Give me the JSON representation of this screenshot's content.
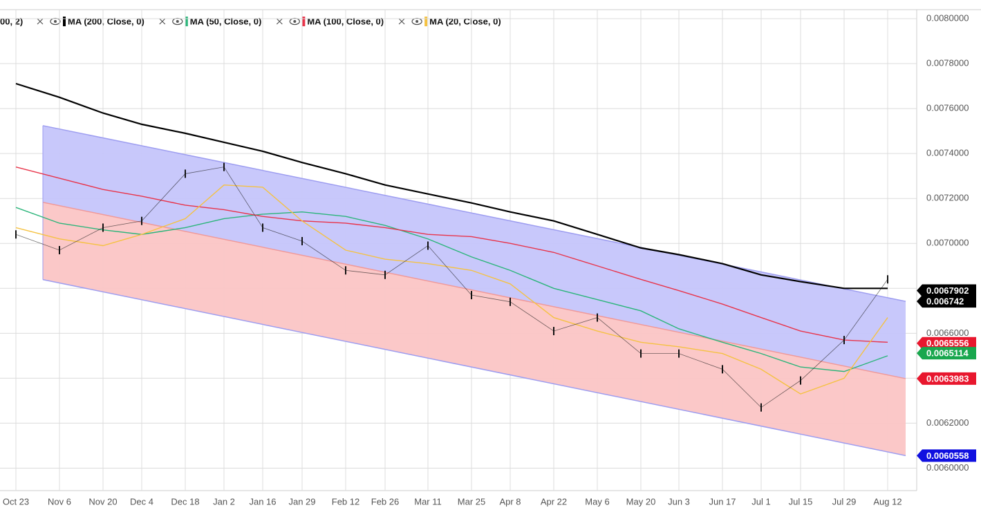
{
  "chart_data": {
    "type": "line",
    "legend_prefix": "00, 2)",
    "categories": [
      "Oct 23",
      "Nov 6",
      "Nov 20",
      "Dec 4",
      "Dec 18",
      "Jan 2",
      "Jan 16",
      "Jan 29",
      "Feb 12",
      "Feb 26",
      "Mar 11",
      "Mar 25",
      "Apr 8",
      "Apr 22",
      "May 6",
      "May 20",
      "Jun 3",
      "Jun 17",
      "Jul 1",
      "Jul 15",
      "Jul 29",
      "Aug 12"
    ],
    "ylim": [
      0.0059,
      0.00804
    ],
    "yticks": [
      {
        "value": 0.006,
        "label": "0.0060000"
      },
      {
        "value": 0.0062,
        "label": "0.0062000"
      },
      {
        "value": 0.0064,
        "label": "0.0064000"
      },
      {
        "value": 0.0066,
        "label": "0.0066000"
      },
      {
        "value": 0.0068,
        "label": "0.0068000"
      },
      {
        "value": 0.007,
        "label": "0.0070000"
      },
      {
        "value": 0.0072,
        "label": "0.0072000"
      },
      {
        "value": 0.0074,
        "label": "0.0074000"
      },
      {
        "value": 0.0076,
        "label": "0.0076000"
      },
      {
        "value": 0.0078,
        "label": "0.0078000"
      },
      {
        "value": 0.008,
        "label": "0.0080000"
      }
    ],
    "grid": true,
    "series": [
      {
        "name": "MA (200, Close, 0)",
        "color": "#000000",
        "values": [
          0.007711,
          0.00765,
          0.00758,
          0.00753,
          0.00749,
          0.00745,
          0.00741,
          0.00736,
          0.00731,
          0.00726,
          0.00722,
          0.00718,
          0.00714,
          0.0071,
          0.00704,
          0.00698,
          0.00695,
          0.00691,
          0.00686,
          0.00683,
          0.0068,
          0.0068
        ]
      },
      {
        "name": "MA (50, Close, 0)",
        "color": "#2bb57a",
        "values": [
          0.00716,
          0.00709,
          0.00706,
          0.00704,
          0.00707,
          0.00711,
          0.00713,
          0.00714,
          0.00712,
          0.00708,
          0.00702,
          0.00694,
          0.00688,
          0.0068,
          0.00675,
          0.0067,
          0.00662,
          0.00656,
          0.00651,
          0.00645,
          0.00643,
          0.0065
        ]
      },
      {
        "name": "MA (100, Close, 0)",
        "color": "#e8344a",
        "values": [
          0.00734,
          0.00729,
          0.00724,
          0.00721,
          0.00717,
          0.00715,
          0.00712,
          0.0071,
          0.00709,
          0.00707,
          0.00704,
          0.00703,
          0.007,
          0.00696,
          0.0069,
          0.00684,
          0.00679,
          0.00673,
          0.00667,
          0.00661,
          0.00657,
          0.00656
        ]
      },
      {
        "name": "MA (20, Close, 0)",
        "color": "#f5c242",
        "values": [
          0.00707,
          0.00702,
          0.00699,
          0.00704,
          0.00711,
          0.00726,
          0.00725,
          0.0071,
          0.00697,
          0.00693,
          0.00691,
          0.00688,
          0.00682,
          0.00667,
          0.00661,
          0.00656,
          0.00654,
          0.00651,
          0.00644,
          0.00633,
          0.0064,
          0.00667
        ]
      }
    ],
    "price": {
      "color": "#111111",
      "values": [
        0.00704,
        0.00697,
        0.00707,
        0.0071,
        0.00731,
        0.00734,
        0.00707,
        0.00701,
        0.00688,
        0.00686,
        0.00699,
        0.00677,
        0.00674,
        0.00661,
        0.00667,
        0.00651,
        0.00651,
        0.00644,
        0.00627,
        0.00639,
        0.00657,
        0.00684
      ]
    },
    "channel": {
      "upper": [
        0.007524,
        0.006742
      ],
      "middle": [
        0.007183,
        0.0063983
      ],
      "lower": [
        0.006839,
        0.0060558
      ],
      "upper_fill": "#c5c5fb",
      "lower_fill": "#fbc5c5",
      "edge": "#9d9df0"
    },
    "price_labels": [
      {
        "value": 0.0067902,
        "color": "#000000"
      },
      {
        "value": 0.006742,
        "color": "#000000"
      },
      {
        "value": 0.0065556,
        "color": "#e8172e"
      },
      {
        "value": 0.0065114,
        "color": "#19a74e"
      },
      {
        "value": 0.0063983,
        "color": "#e8172e"
      },
      {
        "value": 0.0060558,
        "color": "#1010e0"
      }
    ]
  }
}
